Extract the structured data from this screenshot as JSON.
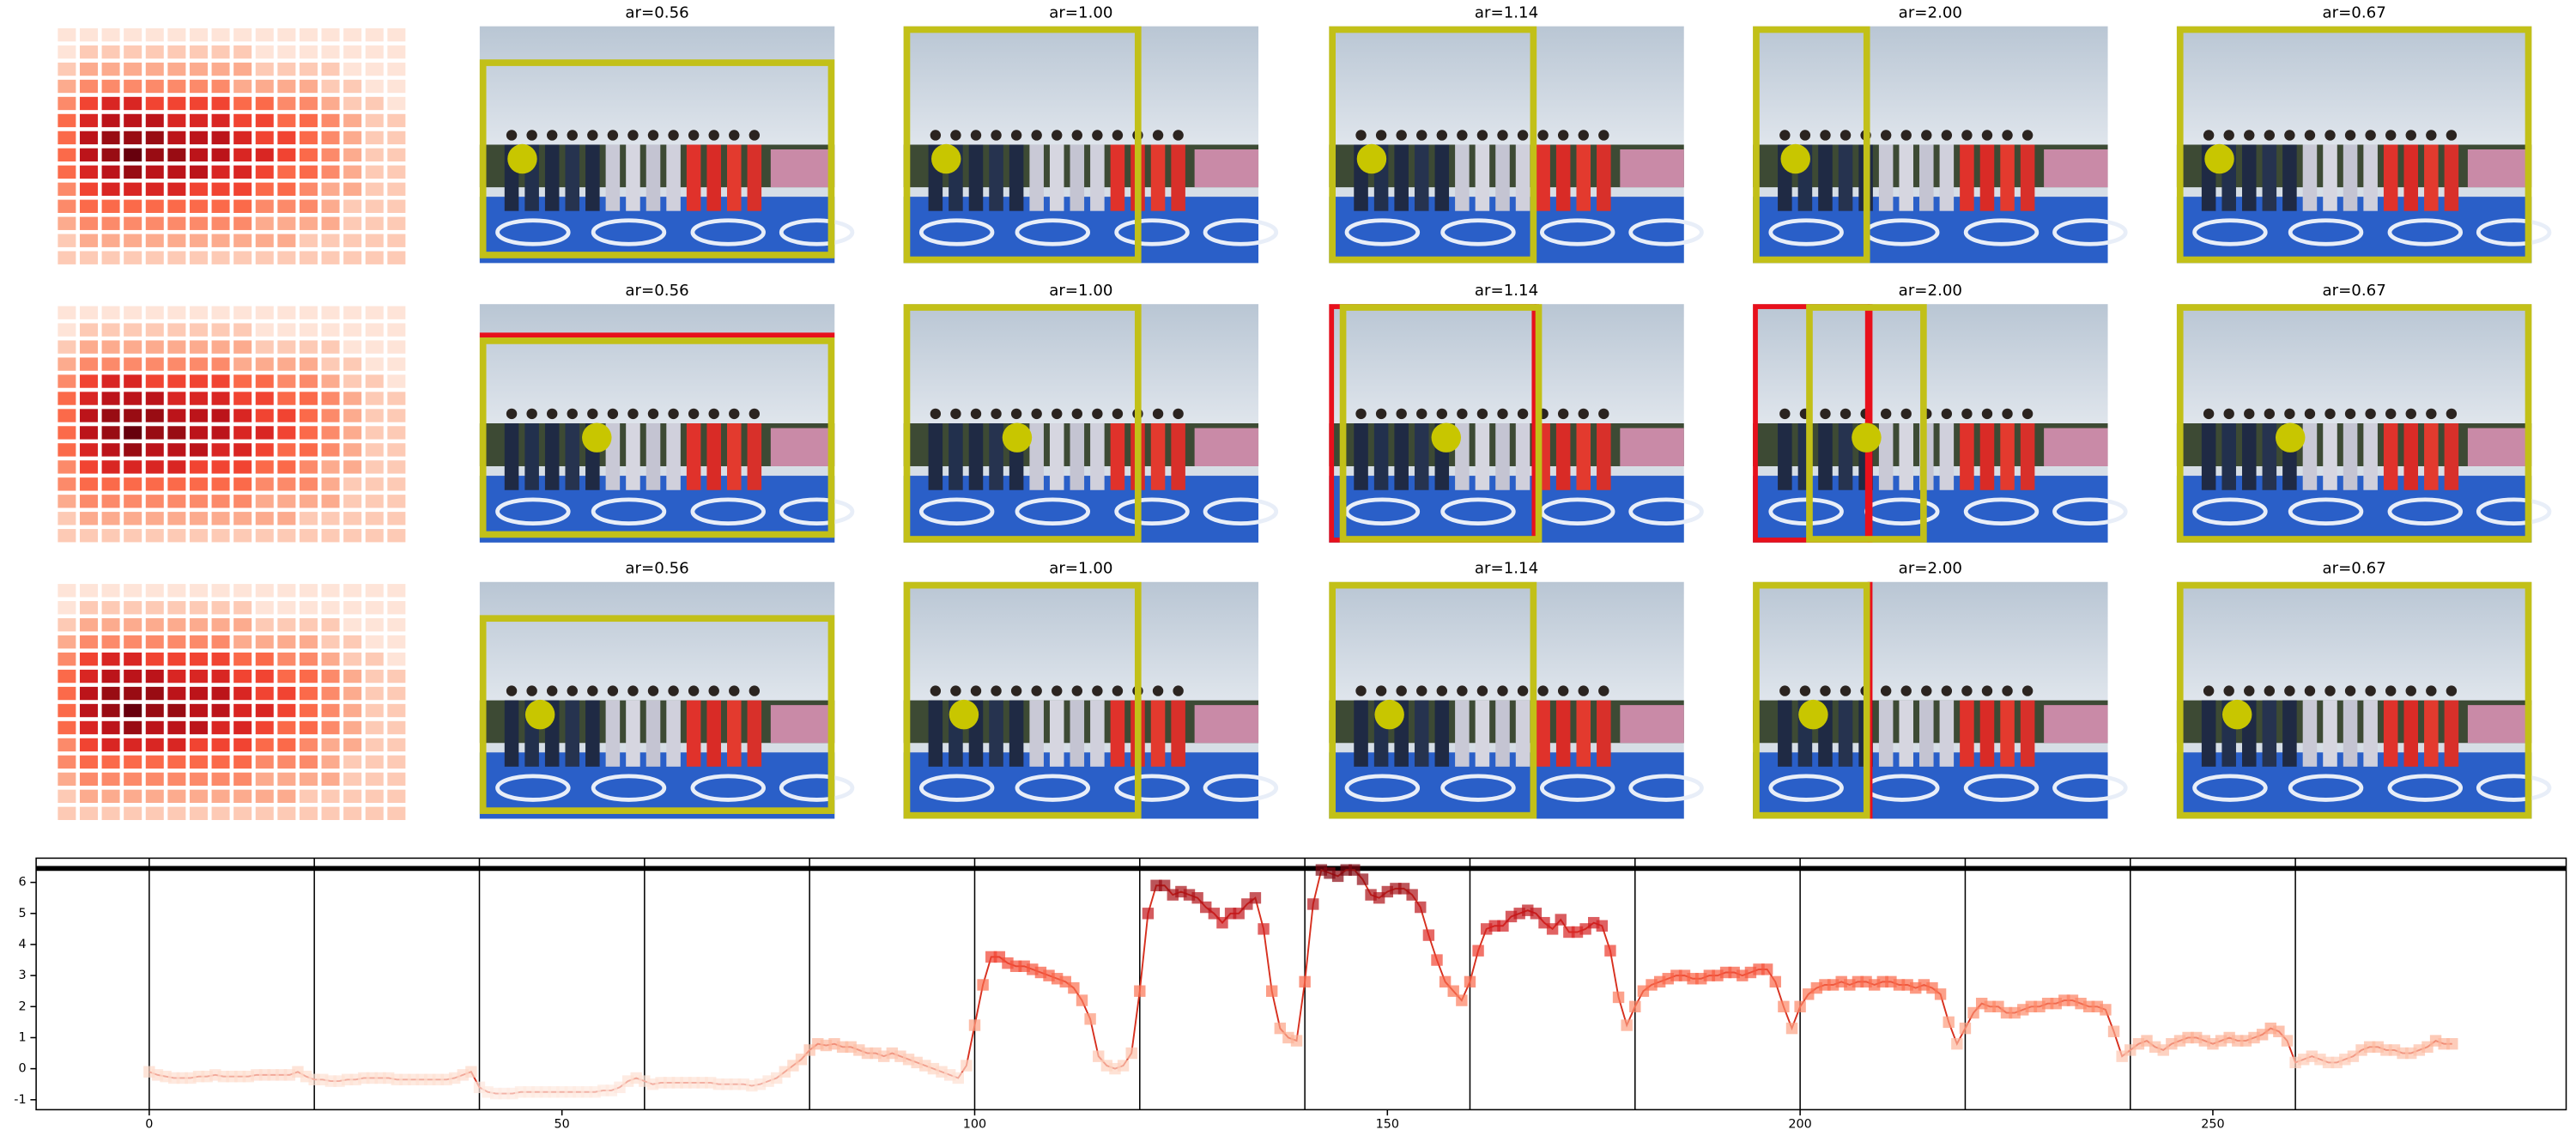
{
  "chart_data": [
    {
      "type": "heatmap",
      "vlim": [
        0,
        1
      ],
      "colormap": [
        "#fff5f0",
        "#fee0d2",
        "#fcbba1",
        "#fc9272",
        "#fb6a4a",
        "#ef3b2c",
        "#cb181d",
        "#a50f15",
        "#67000d"
      ],
      "values": [
        [
          0.1,
          0.1,
          0.1,
          0.1,
          0.1,
          0.1,
          0.1,
          0.1,
          0.1,
          0.1,
          0.1,
          0.1,
          0.1,
          0.1,
          0.1,
          0.1
        ],
        [
          0.1,
          0.2,
          0.2,
          0.2,
          0.2,
          0.2,
          0.2,
          0.2,
          0.2,
          0.1,
          0.1,
          0.1,
          0.1,
          0.1,
          0.1,
          0.1
        ],
        [
          0.2,
          0.3,
          0.3,
          0.3,
          0.3,
          0.3,
          0.3,
          0.3,
          0.3,
          0.2,
          0.2,
          0.2,
          0.2,
          0.1,
          0.1,
          0.1
        ],
        [
          0.3,
          0.4,
          0.4,
          0.4,
          0.4,
          0.4,
          0.4,
          0.4,
          0.3,
          0.3,
          0.3,
          0.3,
          0.2,
          0.2,
          0.1,
          0.1
        ],
        [
          0.4,
          0.6,
          0.7,
          0.7,
          0.6,
          0.6,
          0.6,
          0.6,
          0.5,
          0.5,
          0.4,
          0.4,
          0.3,
          0.2,
          0.2,
          0.1
        ],
        [
          0.5,
          0.7,
          0.8,
          0.8,
          0.8,
          0.7,
          0.7,
          0.7,
          0.6,
          0.6,
          0.5,
          0.5,
          0.4,
          0.3,
          0.2,
          0.2
        ],
        [
          0.5,
          0.8,
          0.9,
          0.9,
          0.9,
          0.8,
          0.8,
          0.8,
          0.7,
          0.6,
          0.6,
          0.5,
          0.4,
          0.3,
          0.2,
          0.2
        ],
        [
          0.5,
          0.8,
          0.9,
          1,
          0.9,
          0.9,
          0.8,
          0.8,
          0.7,
          0.7,
          0.6,
          0.5,
          0.4,
          0.3,
          0.2,
          0.2
        ],
        [
          0.5,
          0.7,
          0.8,
          0.9,
          0.8,
          0.8,
          0.8,
          0.7,
          0.7,
          0.6,
          0.5,
          0.5,
          0.4,
          0.3,
          0.2,
          0.2
        ],
        [
          0.4,
          0.6,
          0.7,
          0.7,
          0.7,
          0.7,
          0.6,
          0.6,
          0.6,
          0.5,
          0.5,
          0.4,
          0.3,
          0.3,
          0.2,
          0.2
        ],
        [
          0.4,
          0.5,
          0.5,
          0.5,
          0.5,
          0.5,
          0.5,
          0.5,
          0.5,
          0.4,
          0.4,
          0.4,
          0.3,
          0.2,
          0.2,
          0.2
        ],
        [
          0.3,
          0.4,
          0.4,
          0.4,
          0.4,
          0.4,
          0.4,
          0.4,
          0.4,
          0.3,
          0.3,
          0.3,
          0.3,
          0.2,
          0.2,
          0.2
        ],
        [
          0.2,
          0.3,
          0.3,
          0.3,
          0.3,
          0.3,
          0.3,
          0.3,
          0.3,
          0.3,
          0.3,
          0.2,
          0.2,
          0.2,
          0.2,
          0.2
        ],
        [
          0.2,
          0.2,
          0.2,
          0.2,
          0.2,
          0.2,
          0.2,
          0.2,
          0.2,
          0.2,
          0.2,
          0.2,
          0.2,
          0.2,
          0.2,
          0.2
        ]
      ]
    },
    {
      "type": "line",
      "color": "#d7301f",
      "colormap": [
        "#fff5f0",
        "#fee0d2",
        "#fcbba1",
        "#fc9272",
        "#fb6a4a",
        "#ef3b2c",
        "#cb181d",
        "#a50f15",
        "#67000d"
      ],
      "x": [
        0,
        1,
        2,
        3,
        4,
        5,
        6,
        7,
        8,
        9,
        10,
        11,
        12,
        13,
        14,
        15,
        16,
        17,
        18,
        19,
        20,
        21,
        22,
        23,
        24,
        25,
        26,
        27,
        28,
        29,
        30,
        31,
        32,
        33,
        34,
        35,
        36,
        37,
        38,
        39,
        40,
        41,
        42,
        43,
        44,
        45,
        46,
        47,
        48,
        49,
        50,
        51,
        52,
        53,
        54,
        55,
        56,
        57,
        58,
        59,
        60,
        61,
        62,
        63,
        64,
        65,
        66,
        67,
        68,
        69,
        70,
        71,
        72,
        73,
        74,
        75,
        76,
        77,
        78,
        79,
        80,
        81,
        82,
        83,
        84,
        85,
        86,
        87,
        88,
        89,
        90,
        91,
        92,
        93,
        94,
        95,
        96,
        97,
        98,
        99,
        100,
        101,
        102,
        103,
        104,
        105,
        106,
        107,
        108,
        109,
        110,
        111,
        112,
        113,
        114,
        115,
        116,
        117,
        118,
        119,
        120,
        121,
        122,
        123,
        124,
        125,
        126,
        127,
        128,
        129,
        130,
        131,
        132,
        133,
        134,
        135,
        136,
        137,
        138,
        139,
        140,
        141,
        142,
        143,
        144,
        145,
        146,
        147,
        148,
        149,
        150,
        151,
        152,
        153,
        154,
        155,
        156,
        157,
        158,
        159,
        160,
        161,
        162,
        163,
        164,
        165,
        166,
        167,
        168,
        169,
        170,
        171,
        172,
        173,
        174,
        175,
        176,
        177,
        178,
        179,
        180,
        181,
        182,
        183,
        184,
        185,
        186,
        187,
        188,
        189,
        190,
        191,
        192,
        193,
        194,
        195,
        196,
        197,
        198,
        199,
        200,
        201,
        202,
        203,
        204,
        205,
        206,
        207,
        208,
        209,
        210,
        211,
        212,
        213,
        214,
        215,
        216,
        217,
        218,
        219,
        220,
        221,
        222,
        223,
        224,
        225,
        226,
        227,
        228,
        229,
        230,
        231,
        232,
        233,
        234,
        235,
        236,
        237,
        238,
        239,
        240,
        241,
        242,
        243,
        244,
        245,
        246,
        247,
        248,
        249,
        250,
        251,
        252,
        253,
        254,
        255,
        256,
        257,
        258,
        259,
        260,
        261,
        262,
        263,
        264,
        265,
        266,
        267,
        268,
        269,
        270,
        271,
        272,
        273,
        274,
        275,
        276,
        277,
        278,
        279
      ],
      "values": [
        -0.1,
        -0.2,
        -0.25,
        -0.3,
        -0.3,
        -0.3,
        -0.25,
        -0.25,
        -0.2,
        -0.25,
        -0.25,
        -0.25,
        -0.25,
        -0.2,
        -0.2,
        -0.2,
        -0.2,
        -0.2,
        -0.1,
        -0.25,
        -0.35,
        -0.35,
        -0.4,
        -0.4,
        -0.35,
        -0.35,
        -0.3,
        -0.3,
        -0.3,
        -0.3,
        -0.35,
        -0.35,
        -0.35,
        -0.35,
        -0.35,
        -0.35,
        -0.35,
        -0.3,
        -0.2,
        -0.1,
        -0.6,
        -0.75,
        -0.8,
        -0.8,
        -0.8,
        -0.75,
        -0.75,
        -0.75,
        -0.75,
        -0.75,
        -0.75,
        -0.75,
        -0.75,
        -0.75,
        -0.75,
        -0.7,
        -0.7,
        -0.6,
        -0.4,
        -0.3,
        -0.4,
        -0.5,
        -0.45,
        -0.45,
        -0.45,
        -0.45,
        -0.45,
        -0.45,
        -0.45,
        -0.5,
        -0.5,
        -0.5,
        -0.5,
        -0.55,
        -0.5,
        -0.4,
        -0.3,
        -0.1,
        0.1,
        0.3,
        0.6,
        0.8,
        0.75,
        0.8,
        0.7,
        0.7,
        0.6,
        0.5,
        0.5,
        0.4,
        0.5,
        0.4,
        0.3,
        0.2,
        0.1,
        0.0,
        -0.1,
        -0.2,
        -0.3,
        0.1,
        1.4,
        2.7,
        3.6,
        3.6,
        3.4,
        3.3,
        3.3,
        3.2,
        3.1,
        3.0,
        2.9,
        2.8,
        2.6,
        2.2,
        1.6,
        0.4,
        0.1,
        0.0,
        0.1,
        0.5,
        2.5,
        5.0,
        5.9,
        5.9,
        5.6,
        5.7,
        5.6,
        5.5,
        5.2,
        5.0,
        4.7,
        5.0,
        5.0,
        5.3,
        5.5,
        4.5,
        2.5,
        1.3,
        1.0,
        0.9,
        2.8,
        5.3,
        6.4,
        6.3,
        6.2,
        6.4,
        6.4,
        6.1,
        5.6,
        5.5,
        5.7,
        5.8,
        5.8,
        5.6,
        5.2,
        4.3,
        3.5,
        2.8,
        2.5,
        2.2,
        2.8,
        3.8,
        4.5,
        4.6,
        4.6,
        4.9,
        5.0,
        5.1,
        5.0,
        4.7,
        4.5,
        4.8,
        4.4,
        4.4,
        4.5,
        4.7,
        4.6,
        3.8,
        2.3,
        1.4,
        2.0,
        2.5,
        2.7,
        2.8,
        2.9,
        3.0,
        3.0,
        2.9,
        2.9,
        3.0,
        3.0,
        3.1,
        3.1,
        3.0,
        3.1,
        3.2,
        3.2,
        2.8,
        2.0,
        1.3,
        2.0,
        2.4,
        2.6,
        2.7,
        2.7,
        2.8,
        2.7,
        2.8,
        2.8,
        2.7,
        2.8,
        2.8,
        2.7,
        2.7,
        2.6,
        2.7,
        2.6,
        2.4,
        1.5,
        0.8,
        1.3,
        1.8,
        2.1,
        2.0,
        2.0,
        1.8,
        1.8,
        1.9,
        2.0,
        2.0,
        2.1,
        2.1,
        2.2,
        2.2,
        2.1,
        2.0,
        2.0,
        1.9,
        1.2,
        0.4,
        0.6,
        0.8,
        0.9,
        0.7,
        0.6,
        0.8,
        0.9,
        1.0,
        1.0,
        0.9,
        0.8,
        0.9,
        1.0,
        0.9,
        0.9,
        1.0,
        1.1,
        1.3,
        1.2,
        0.9,
        0.2,
        0.3,
        0.4,
        0.3,
        0.2,
        0.2,
        0.3,
        0.4,
        0.6,
        0.7,
        0.7,
        0.6,
        0.6,
        0.5,
        0.5,
        0.6,
        0.7,
        0.9,
        0.8,
        0.8
      ],
      "xlim": [
        -13.7,
        292.8
      ],
      "ylim": [
        -1.32,
        6.78
      ],
      "xticks": [
        0,
        50,
        100,
        150,
        200,
        250
      ],
      "yticks": [
        -1,
        0,
        1,
        2,
        3,
        4,
        5,
        6
      ],
      "vlines": [
        0,
        20,
        40,
        60,
        80,
        100,
        120,
        140,
        160,
        180,
        200,
        220,
        240,
        260
      ],
      "hline": 6.45
    }
  ],
  "panels": {
    "titles": [
      [
        "ar=0.56",
        "ar=1.00",
        "ar=1.14",
        "ar=2.00",
        "ar=0.67"
      ],
      [
        "ar=0.56",
        "ar=1.00",
        "ar=1.14",
        "ar=2.00",
        "ar=0.67"
      ],
      [
        "ar=0.56",
        "ar=1.00",
        "ar=1.14",
        "ar=2.00",
        "ar=0.67"
      ]
    ]
  }
}
